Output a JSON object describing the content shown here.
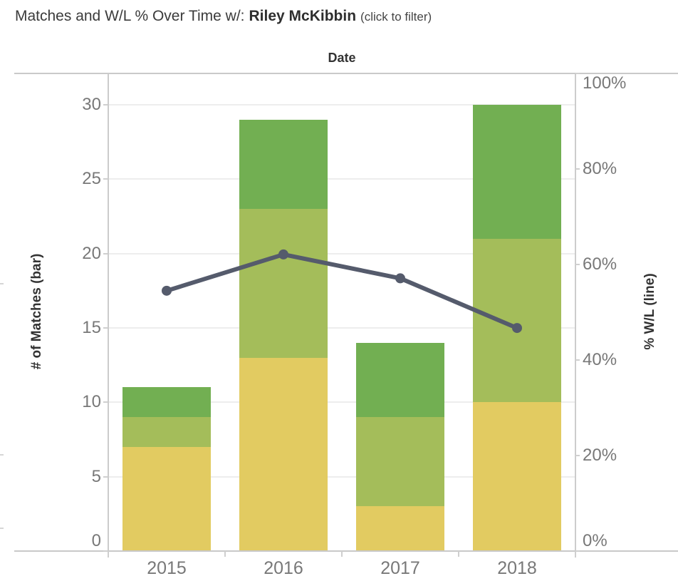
{
  "title": {
    "prefix": "Matches and W/L % Over Time w/:",
    "player": "Riley McKibbin",
    "suffix": "(click to filter)"
  },
  "chart_data": {
    "type": "combo: stacked bar + line, dual axis",
    "x_title": "Date",
    "categories": [
      "2015",
      "2016",
      "2017",
      "2018"
    ],
    "bar_series": [
      {
        "name": "bottom-segment-yellow",
        "color": "#E2CB61",
        "values": [
          7,
          13,
          3,
          10
        ]
      },
      {
        "name": "middle-segment-olive",
        "color": "#A4BD5A",
        "values": [
          2,
          10,
          6,
          11
        ]
      },
      {
        "name": "top-segment-green",
        "color": "#72AF52",
        "values": [
          2,
          6,
          5,
          9
        ]
      }
    ],
    "stack_totals": [
      11,
      29,
      14,
      30
    ],
    "line_series": {
      "name": "% W/L",
      "color": "#555B6C",
      "values_pct": [
        54.5,
        62.1,
        57.1,
        46.7
      ]
    },
    "left_axis": {
      "title": "# of Matches (bar)",
      "ticks": [
        0,
        5,
        10,
        15,
        20,
        25,
        30
      ],
      "max": 32.1
    },
    "right_axis": {
      "title": "% W/L (line)",
      "ticks": [
        0,
        20,
        40,
        60,
        80,
        100
      ],
      "suffix": "%",
      "max": 100
    },
    "grid": "horizontal only",
    "legend": "none"
  },
  "colors": {
    "axis_line": "#c9c9c9",
    "gridline": "#ededed",
    "tick_text": "#787878",
    "title_text": "#3b3b3b"
  }
}
